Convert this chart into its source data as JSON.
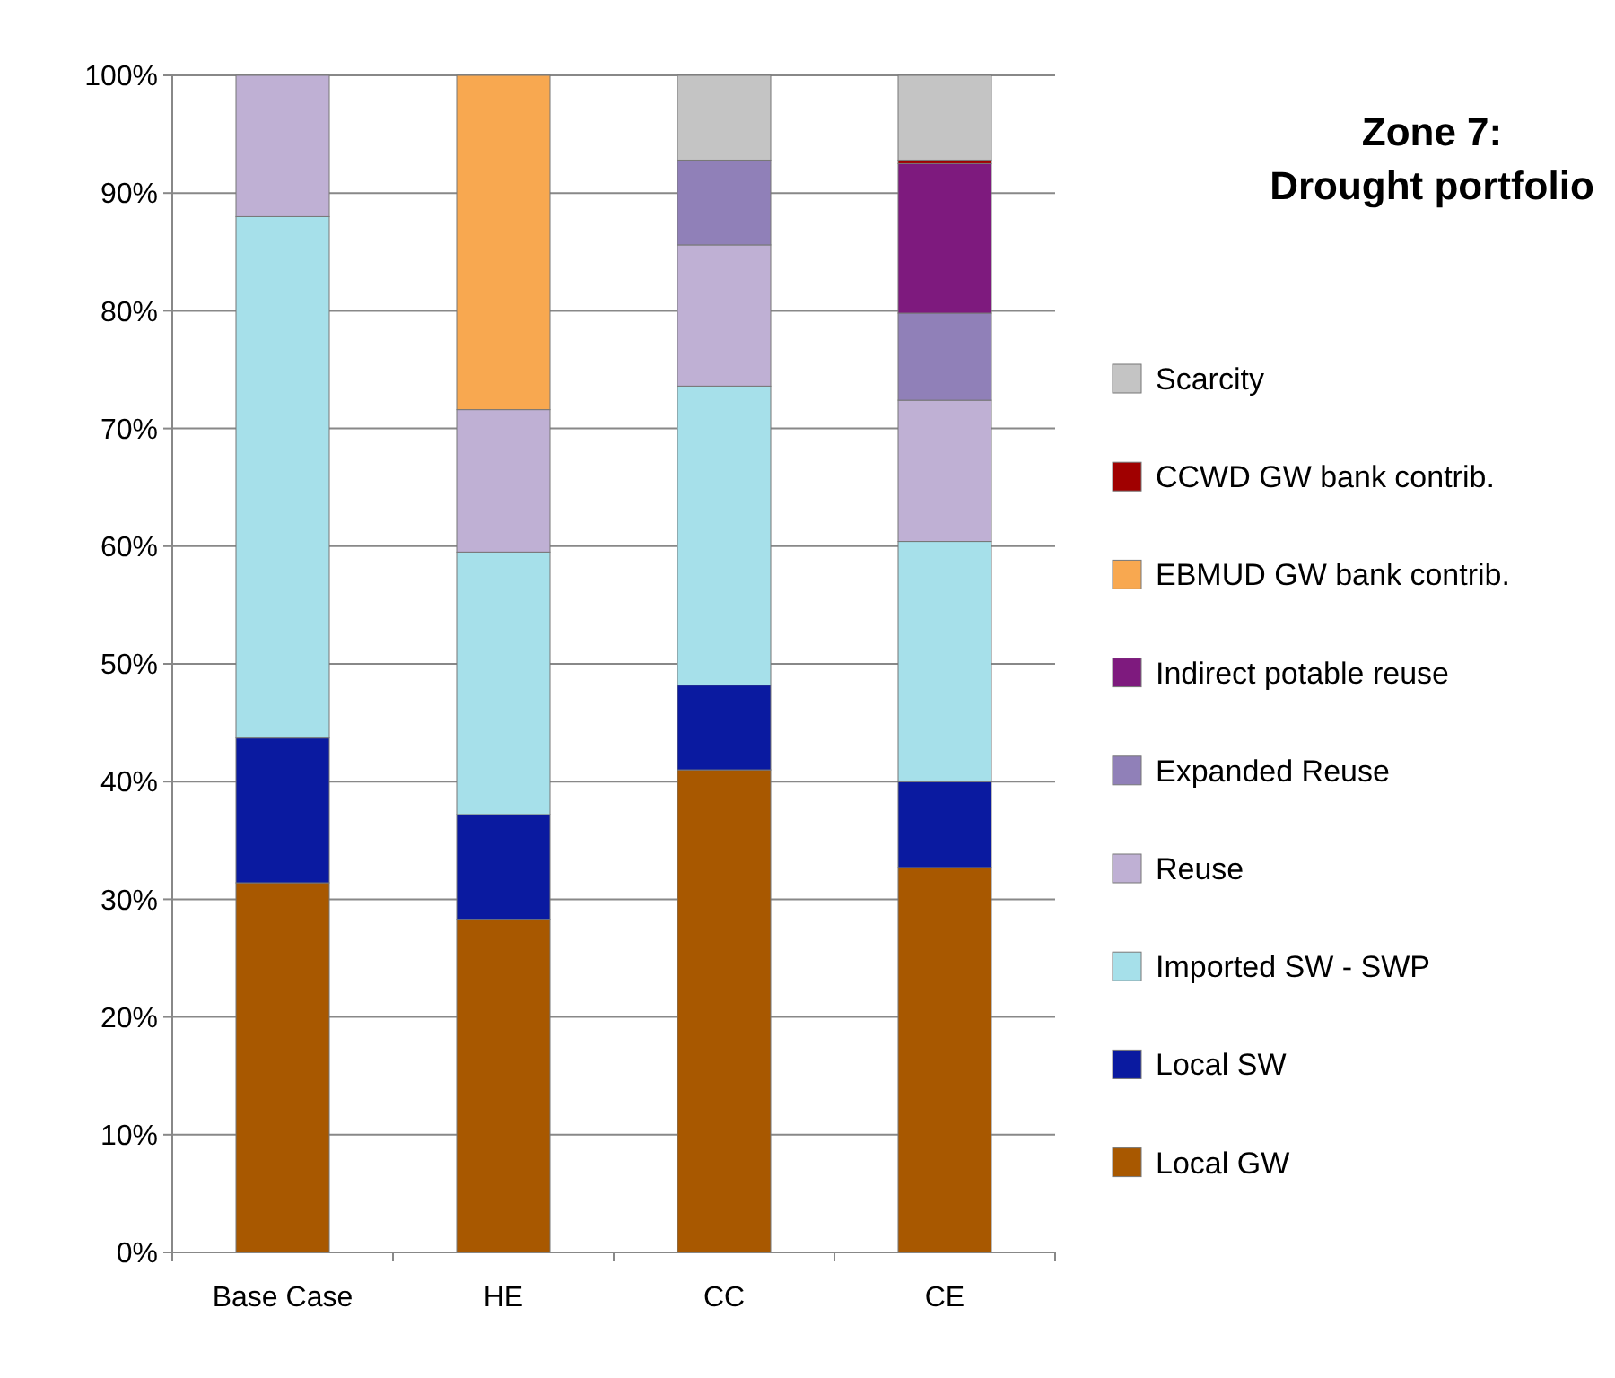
{
  "chart_data": {
    "type": "bar",
    "title": "Zone 7:\nDrought portfolio",
    "stacked": true,
    "legend": "right",
    "grid": "y",
    "categories": [
      "Base Case",
      "HE",
      "CC",
      "CE"
    ],
    "ylim": [
      0,
      100
    ],
    "yticks": [
      {
        "value": 0,
        "label": "0%"
      },
      {
        "value": 10,
        "label": "10%"
      },
      {
        "value": 20,
        "label": "20%"
      },
      {
        "value": 30,
        "label": "30%"
      },
      {
        "value": 40,
        "label": "40%"
      },
      {
        "value": 50,
        "label": "50%"
      },
      {
        "value": 60,
        "label": "60%"
      },
      {
        "value": 70,
        "label": "70%"
      },
      {
        "value": 80,
        "label": "80%"
      },
      {
        "value": 90,
        "label": "90%"
      },
      {
        "value": 100,
        "label": "100%"
      }
    ],
    "series": [
      {
        "name": "Local GW",
        "color": "#a85800",
        "values": [
          31.4,
          28.3,
          41.0,
          32.7
        ]
      },
      {
        "name": "Local SW",
        "color": "#0a1aa0",
        "values": [
          12.3,
          8.9,
          7.2,
          7.3
        ]
      },
      {
        "name": "Imported SW - SWP",
        "color": "#a6e0ea",
        "values": [
          44.3,
          22.3,
          25.4,
          20.4
        ]
      },
      {
        "name": "Reuse",
        "color": "#bfb0d4",
        "values": [
          12.0,
          12.1,
          12.0,
          12.0
        ]
      },
      {
        "name": "Expanded Reuse",
        "color": "#9080b8",
        "values": [
          null,
          null,
          7.2,
          7.4
        ]
      },
      {
        "name": "Indirect potable reuse",
        "color": "#7e1a7e",
        "values": [
          null,
          null,
          null,
          12.7
        ]
      },
      {
        "name": "EBMUD GW bank contrib.",
        "color": "#f8a850",
        "values": [
          null,
          28.4,
          null,
          null
        ]
      },
      {
        "name": "CCWD GW bank contrib.",
        "color": "#a00000",
        "values": [
          null,
          null,
          null,
          0.3
        ]
      },
      {
        "name": "Scarcity",
        "color": "#c4c4c4",
        "values": [
          null,
          null,
          7.2,
          7.2
        ]
      }
    ]
  }
}
